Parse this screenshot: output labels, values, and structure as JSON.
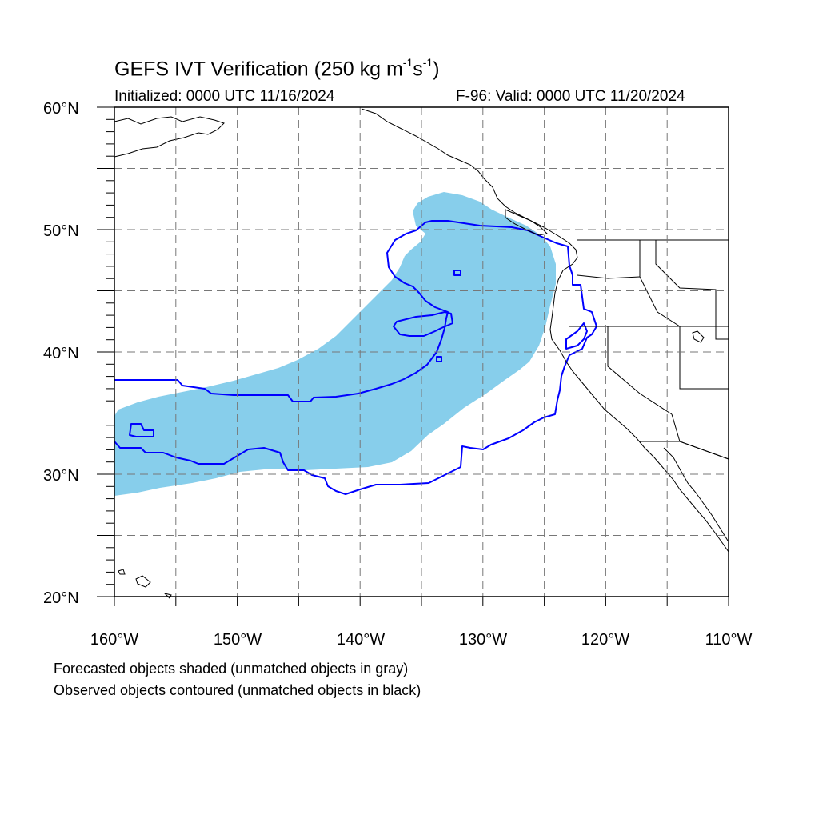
{
  "title": {
    "prefix": "GEFS IVT Verification (250 kg m",
    "sup1": "-1",
    "mid": "s",
    "sup2": "-1",
    "suffix": ")"
  },
  "initialized": "Initialized: 0000 UTC 11/16/2024",
  "valid": "F-96: Valid: 0000 UTC 11/20/2024",
  "legend": {
    "forecast_note": "Forecasted objects shaded (unmatched objects in gray)",
    "observed_note": "Observed objects contoured (unmatched objects in black)"
  },
  "map": {
    "lat_labels": [
      "60°N",
      "50°N",
      "40°N",
      "30°N",
      "20°N"
    ],
    "lon_labels": [
      "160°W",
      "150°W",
      "140°W",
      "130°W",
      "120°W",
      "110°W"
    ],
    "lat_range": [
      20,
      60
    ],
    "lon_range": [
      -160,
      -110
    ],
    "forecast_fill_color": "#87CEEB",
    "observed_contour_color": "#0000FF",
    "coastline_color": "#000000",
    "grid_style": "dashed"
  }
}
